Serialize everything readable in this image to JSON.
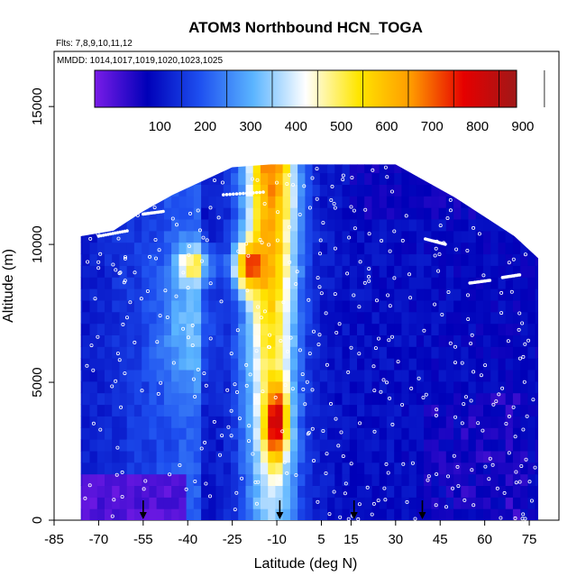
{
  "chart_data": {
    "type": "heatmap",
    "title": "ATOM3 Northbound HCN_TOGA",
    "subtitle_flights": "Flts: 7,8,9,10,11,12",
    "subtitle_dates": "MMDD: 1014,1017,1019,1020,1023,1025",
    "xlabel": "Latitude (deg N)",
    "ylabel": "Altitude (m)",
    "xlim": [
      -85,
      85
    ],
    "ylim": [
      0,
      17000
    ],
    "x_ticks": [
      -85,
      -70,
      -55,
      -40,
      -25,
      -10,
      5,
      15,
      30,
      45,
      60,
      75
    ],
    "x_tick_labels": [
      "-85",
      "-70",
      "-55",
      "-40",
      "-25",
      "-10",
      "5",
      "15",
      "30",
      "45",
      "60",
      "75"
    ],
    "y_ticks": [
      0,
      5000,
      10000,
      15000
    ],
    "y_tick_labels": [
      "0",
      "5000",
      "10000",
      "15000"
    ],
    "colorbar": {
      "range": [
        0,
        930
      ],
      "ticks": [
        100,
        200,
        300,
        400,
        500,
        600,
        700,
        800,
        900
      ],
      "tick_labels": [
        "100",
        "200",
        "300",
        "400",
        "500",
        "600",
        "700",
        "800",
        "900"
      ],
      "colors": [
        "#7a1ce8",
        "#0000b8",
        "#1e50f0",
        "#5ab4ff",
        "#ffffff",
        "#ffe600",
        "#ff9a00",
        "#e60000",
        "#a01818"
      ]
    },
    "grid": false,
    "profile_markers_lat": [
      -55,
      -9,
      16,
      39
    ],
    "hotspots": [
      {
        "lat": -18,
        "alt": 9500,
        "value": 650
      },
      {
        "lat": -18,
        "alt": 8800,
        "value": 640
      },
      {
        "lat": -10,
        "alt": 4200,
        "value": 800
      },
      {
        "lat": -10,
        "alt": 3200,
        "value": 780
      },
      {
        "lat": -10,
        "alt": 2500,
        "value": 600
      },
      {
        "lat": -42,
        "alt": 9200,
        "value": 560
      }
    ]
  }
}
